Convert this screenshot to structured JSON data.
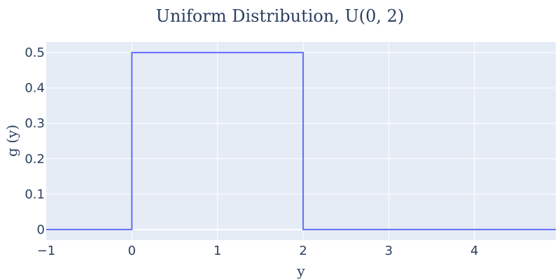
{
  "chart_data": {
    "type": "line",
    "title": "Uniform Distribution, U(0, 2)",
    "xlabel": "y",
    "ylabel": "g (y)",
    "xlim": [
      -1,
      4.95
    ],
    "ylim": [
      -0.03,
      0.53
    ],
    "grid": true,
    "line_shape": "step",
    "colors": {
      "plot_bg": "#e5ecf6",
      "grid": "#ffffff",
      "line": "#636efa",
      "text": "#2a3f5f"
    },
    "x_ticks": [
      {
        "value": -1,
        "label": "−1"
      },
      {
        "value": 0,
        "label": "0"
      },
      {
        "value": 1,
        "label": "1"
      },
      {
        "value": 2,
        "label": "2"
      },
      {
        "value": 3,
        "label": "3"
      },
      {
        "value": 4,
        "label": "4"
      }
    ],
    "y_ticks": [
      {
        "value": 0,
        "label": "0"
      },
      {
        "value": 0.1,
        "label": "0.1"
      },
      {
        "value": 0.2,
        "label": "0.2"
      },
      {
        "value": 0.3,
        "label": "0.3"
      },
      {
        "value": 0.4,
        "label": "0.4"
      },
      {
        "value": 0.5,
        "label": "0.5"
      }
    ],
    "series": [
      {
        "x": [
          -1,
          0,
          0,
          2,
          2,
          4.95
        ],
        "y": [
          0,
          0,
          0.5,
          0.5,
          0,
          0
        ]
      }
    ]
  }
}
